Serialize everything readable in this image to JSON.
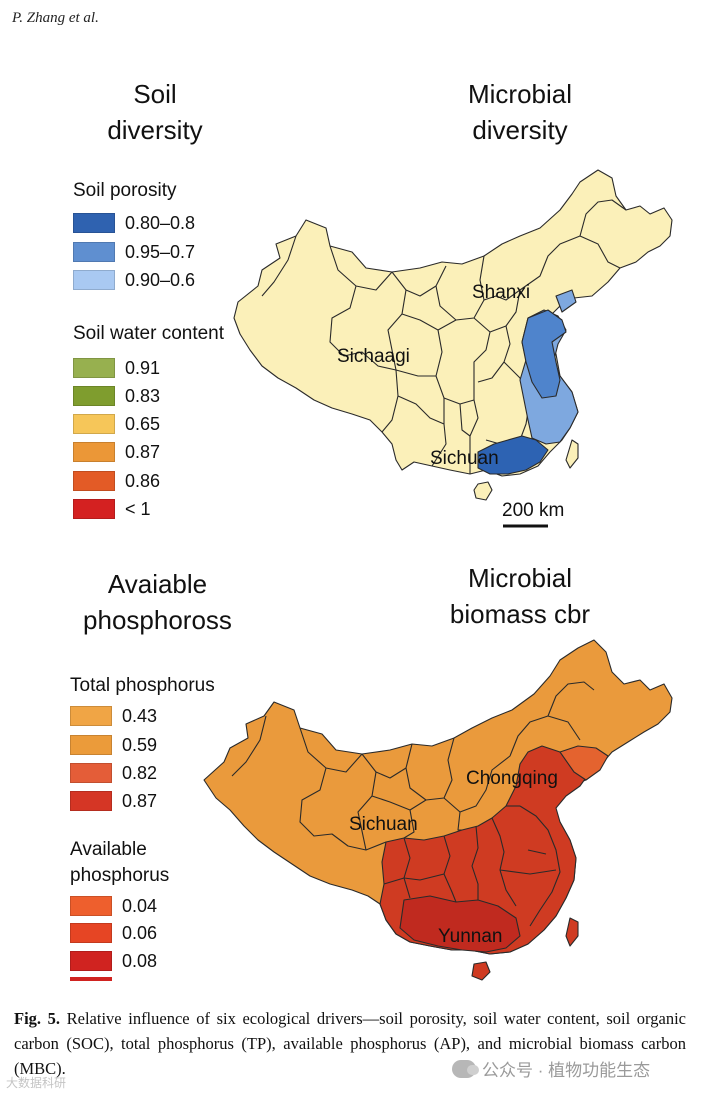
{
  "header": {
    "author": "P. Zhang et al."
  },
  "panels": {
    "top_left_title": [
      "Soil",
      "diversity"
    ],
    "top_right_title": [
      "Microbial",
      "diversity"
    ],
    "bottom_left_title": [
      "Avaiable",
      "phosphoross"
    ],
    "bottom_right_title": [
      "Microbial",
      "biomass cbr"
    ]
  },
  "legend_top": {
    "porosity_heading": "Soil porosity",
    "porosity_items": [
      {
        "label": "0.80–0.8",
        "color": "#2f62b0"
      },
      {
        "label": "0.95–0.7",
        "color": "#5f8fd0"
      },
      {
        "label": "0.90–0.6",
        "color": "#a9c9f2"
      }
    ],
    "water_heading": "Soil water content",
    "water_items": [
      {
        "label": "0.91",
        "color": "#97b04f"
      },
      {
        "label": "0.83",
        "color": "#7f9d2e"
      },
      {
        "label": "0.65",
        "color": "#f6c659"
      },
      {
        "label": "0.87",
        "color": "#eb9737"
      },
      {
        "label": "0.86",
        "color": "#e35b26"
      },
      {
        "label": "< 1",
        "color": "#d42121"
      }
    ]
  },
  "legend_bottom": {
    "tp_heading": "Total phosphorus",
    "tp_items": [
      {
        "label": "0.43",
        "color": "#f0a545"
      },
      {
        "label": "0.59",
        "color": "#eb9b3a"
      },
      {
        "label": "0.82",
        "color": "#e45d38"
      },
      {
        "label": "0.87",
        "color": "#d53625"
      }
    ],
    "ap_heading_lines": [
      "Available",
      "phosphorus"
    ],
    "ap_items": [
      {
        "label": "0.04",
        "color": "#ee5f2d"
      },
      {
        "label": "0.06",
        "color": "#e64524"
      },
      {
        "label": "0.08",
        "color": "#d02320"
      }
    ]
  },
  "map_top": {
    "labels": {
      "north": "Shanxi",
      "west": "Sichaagi",
      "south": "Sichuan"
    },
    "scale_bar": "200 km",
    "colors": {
      "base": "#fbf0b9",
      "dark": "#2d63b3",
      "mid": "#4f84cc",
      "light": "#7ea8df",
      "outline": "#2a2a2a"
    }
  },
  "map_bottom": {
    "labels": {
      "north": "Chongqing",
      "west": "Sichuan",
      "south": "Yunnan"
    },
    "colors": {
      "base": "#ea9a3c",
      "east": "#cf3b22",
      "deep": "#c02a1f",
      "accent": "#e4632f",
      "outline": "#2a2a2a"
    }
  },
  "caption": {
    "figure_label": "Fig. 5.",
    "text": "Relative influence of six ecological drivers—soil porosity, soil water content, soil organic carbon (SOC), total phosphorus (TP), available phosphorus (AP), and microbial biomass carbon (MBC)."
  },
  "watermark": {
    "text": "公众号 · 植物功能生态",
    "left_text": "大数据科研"
  }
}
